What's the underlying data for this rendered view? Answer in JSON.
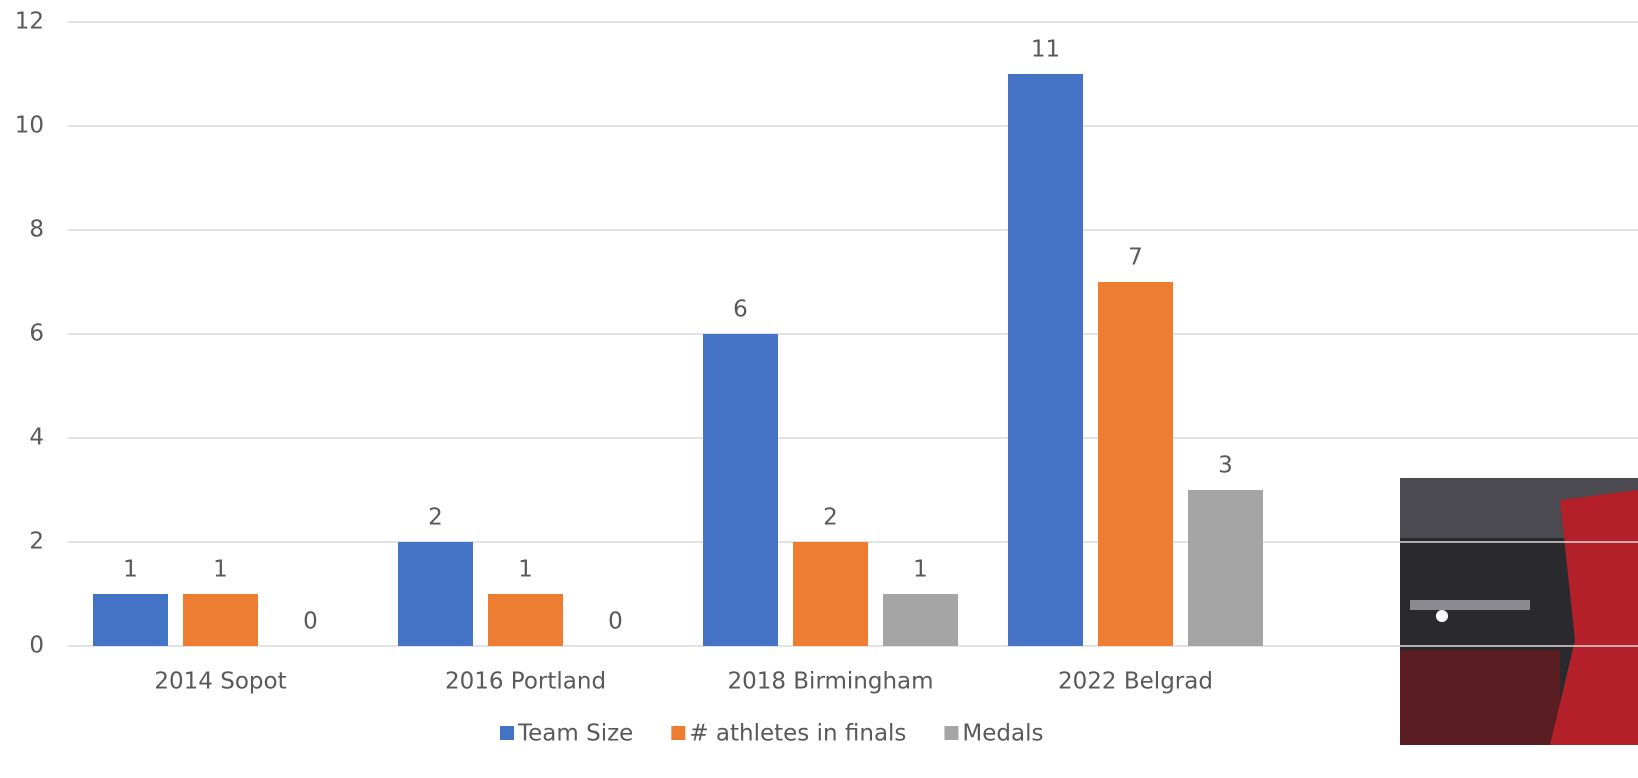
{
  "chart_data": {
    "type": "bar",
    "categories": [
      "2014 Sopot",
      "2016 Portland",
      "2018 Birmingham",
      "2022 Belgrad"
    ],
    "series": [
      {
        "name": "Team Size",
        "color": "#4472c4",
        "values": [
          1,
          2,
          6,
          11
        ]
      },
      {
        "name": "# athletes in finals",
        "color": "#ed7d31",
        "values": [
          1,
          1,
          2,
          7
        ]
      },
      {
        "name": "Medals",
        "color": "#a5a5a5",
        "values": [
          0,
          0,
          1,
          3
        ]
      }
    ],
    "ylim": [
      0,
      12
    ],
    "yticks": [
      0,
      2,
      4,
      6,
      8,
      10,
      12
    ],
    "grid": true,
    "legend": "bottom"
  }
}
